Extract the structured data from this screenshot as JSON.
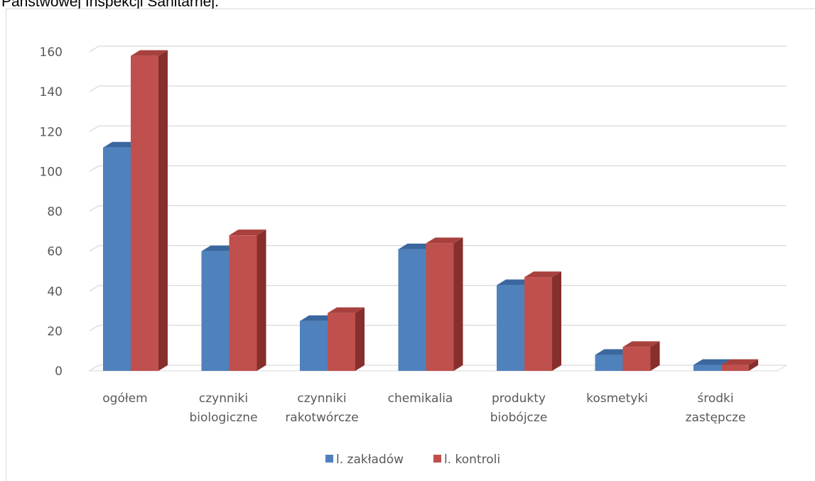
{
  "page": {
    "caption": "Państwowej Inspekcji Sanitarnej."
  },
  "chart_data": {
    "type": "bar",
    "title": "",
    "xlabel": "",
    "ylabel": "",
    "ylim": [
      0,
      160
    ],
    "yticks": [
      0,
      20,
      40,
      60,
      80,
      100,
      120,
      140,
      160
    ],
    "yticks_labels": [
      "0",
      "20",
      "40",
      "60",
      "80",
      "100",
      "120",
      "140",
      "160"
    ],
    "grid": true,
    "legend_position": "bottom",
    "categories": [
      [
        "ogółem"
      ],
      [
        "czynniki",
        "biologiczne"
      ],
      [
        "czynniki",
        "rakotwórcze"
      ],
      [
        "chemikalia"
      ],
      [
        "produkty",
        "biobójcze"
      ],
      [
        "kosmetyki"
      ],
      [
        "środki",
        "zastępcze"
      ]
    ],
    "series": [
      {
        "name": "l. zakładów",
        "color": "#4f81bd",
        "top_color": "#3a679e",
        "side_color": "#2f5483",
        "values": [
          112,
          60,
          25,
          61,
          43,
          8,
          3
        ]
      },
      {
        "name": "l. kontroli",
        "color": "#c0504d",
        "top_color": "#a8413e",
        "side_color": "#862f2c",
        "values": [
          158,
          68,
          29,
          64,
          47,
          12,
          3
        ]
      }
    ]
  }
}
